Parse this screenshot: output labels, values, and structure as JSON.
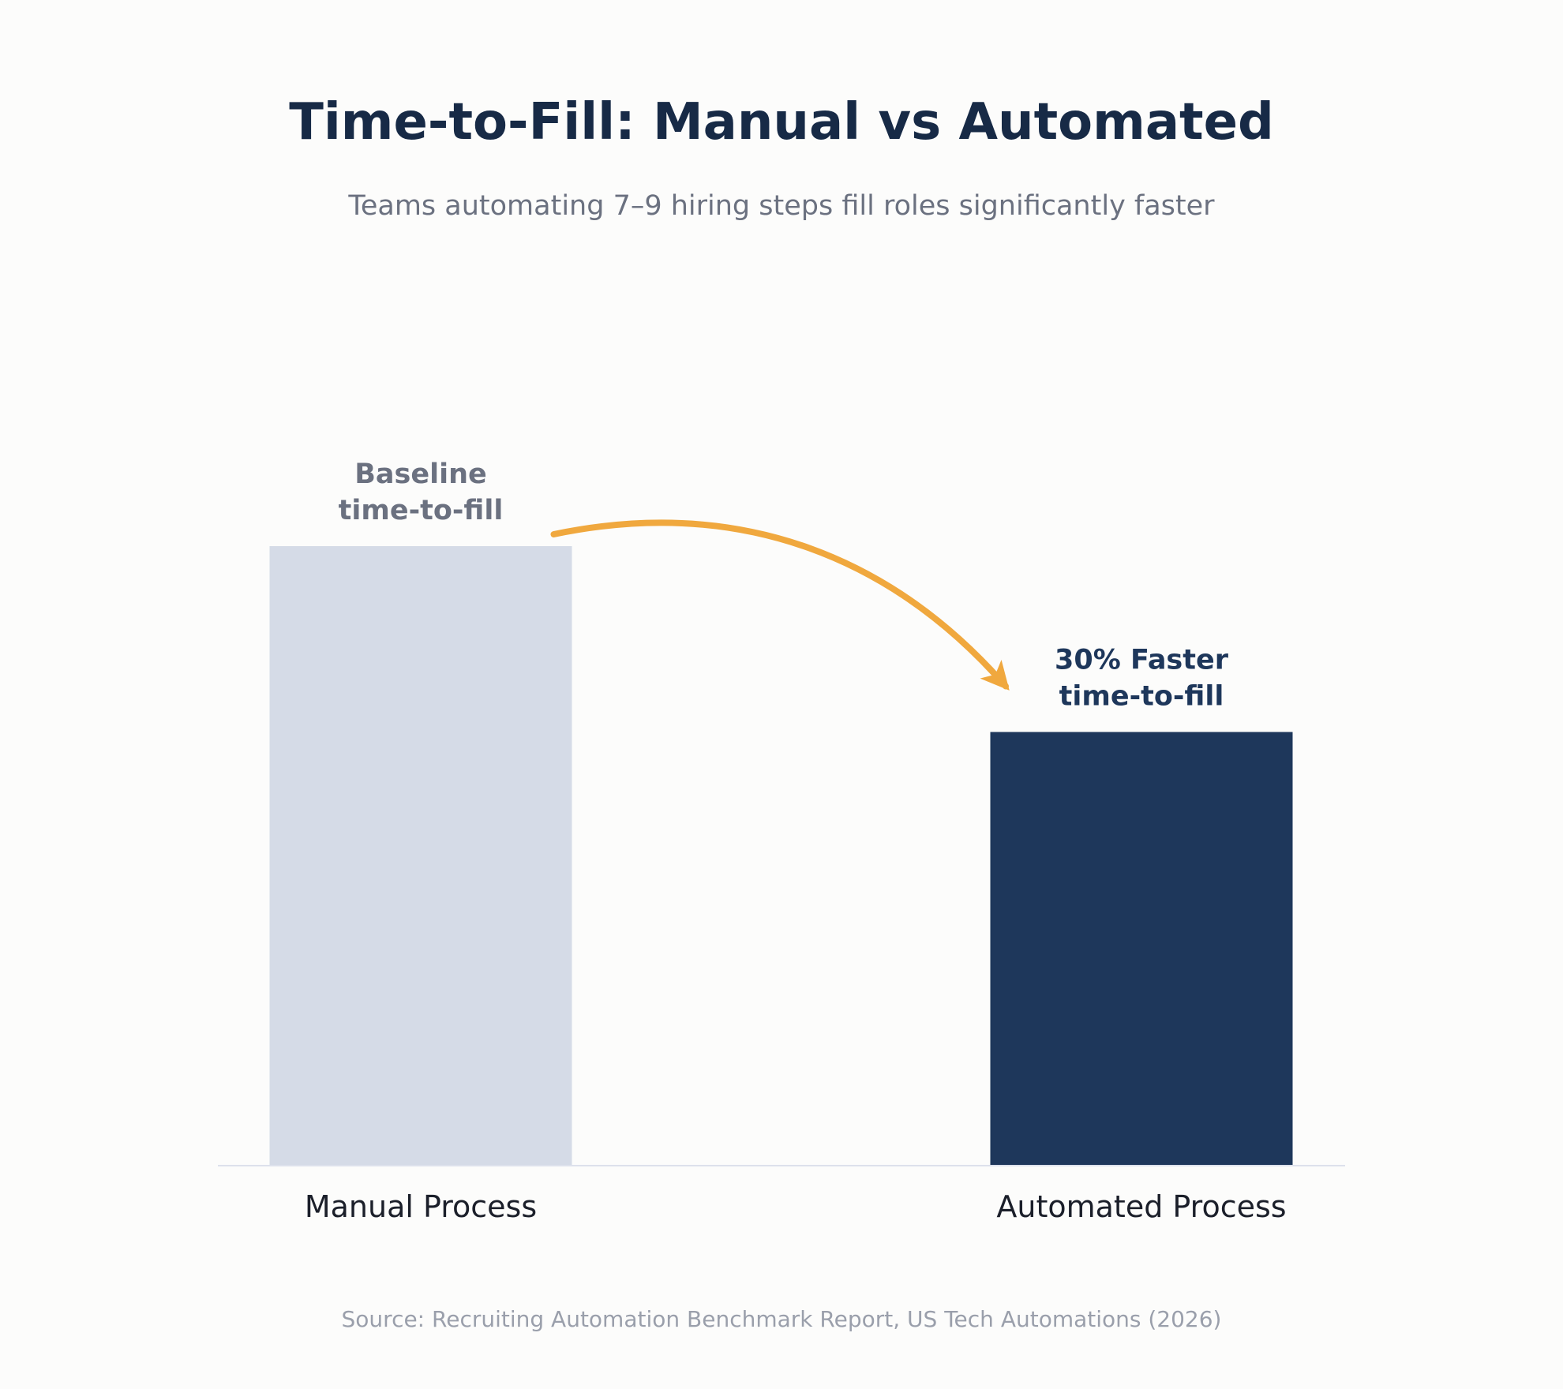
{
  "chart_data": {
    "type": "bar",
    "title": "Time-to-Fill: Manual vs Automated",
    "subtitle": "Teams automating 7–9 hiring steps fill roles significantly faster",
    "categories": [
      "Manual Process",
      "Automated Process"
    ],
    "values": [
      100,
      70
    ],
    "value_unit": "relative time-to-fill (manual = 100)",
    "ylim": [
      0,
      100
    ],
    "grid": false,
    "legend": "none",
    "bar_labels": [
      [
        "Baseline",
        "time-to-fill"
      ],
      [
        "30% Faster",
        "time-to-fill"
      ]
    ],
    "annotation": "curved arrow from Manual Process to Automated Process",
    "source": "Source: Recruiting Automation Benchmark Report, US Tech Automations (2026)"
  },
  "colors": {
    "background": "#fcfcfb",
    "title": "#172a46",
    "subtitle": "#6b7180",
    "bars": [
      "#d5dbe7",
      "#1e375b"
    ],
    "bar_label_colors": [
      "#6b7180",
      "#1e375b"
    ],
    "arrow": "#f0a83e",
    "baseline": "#dde1ec",
    "category_text": "#1b1f2a",
    "source_text": "#9a9fab"
  }
}
